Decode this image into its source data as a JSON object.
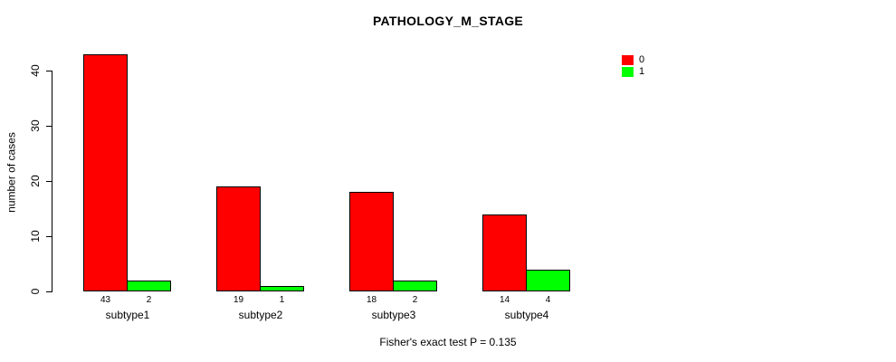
{
  "chart_data": {
    "type": "bar",
    "title": "PATHOLOGY_M_STAGE",
    "categories": [
      "subtype1",
      "subtype2",
      "subtype3",
      "subtype4"
    ],
    "series": [
      {
        "name": "0",
        "color": "#FF0000",
        "values": [
          43,
          19,
          18,
          14
        ]
      },
      {
        "name": "1",
        "color": "#00FF00",
        "values": [
          2,
          1,
          2,
          4
        ]
      }
    ],
    "xlabel": "",
    "ylabel": "number of cases",
    "ylim": [
      0,
      40
    ],
    "yticks": [
      0,
      10,
      20,
      30,
      40
    ],
    "grid": false,
    "legend_position": "top-right",
    "bar_value_labels_shown": true,
    "caption": "Fisher's exact test P = 0.135"
  }
}
